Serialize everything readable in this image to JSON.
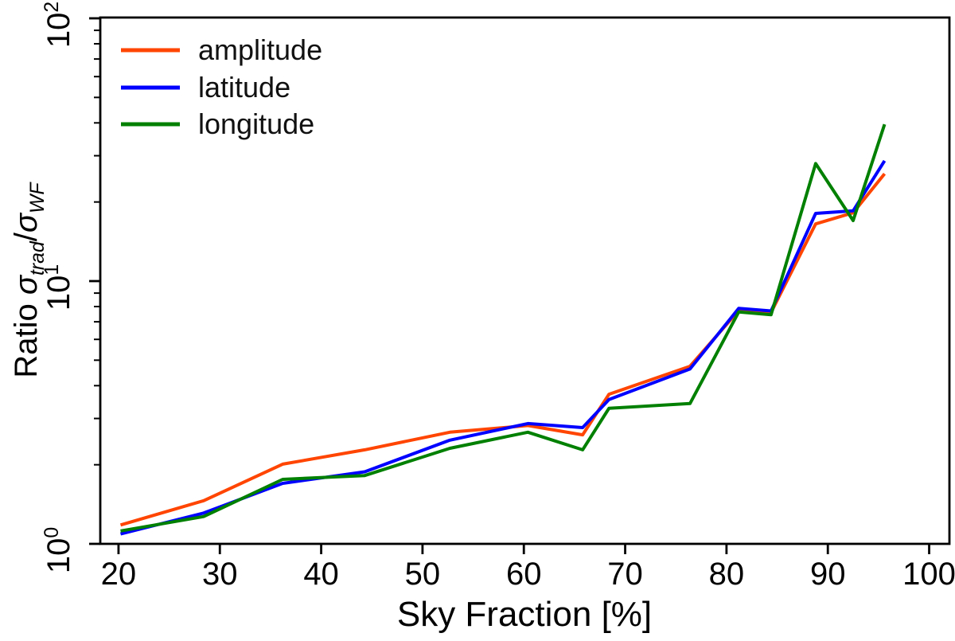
{
  "figure": {
    "background": "#ffffff",
    "axis_color": "#000000",
    "text_color": "#000000"
  },
  "chart_data": {
    "type": "line",
    "title": "",
    "xlabel": "Sky Fraction [%]",
    "ylabel": {
      "plain": "Ratio σtrad/σWF",
      "prefix": "Ratio ",
      "sigma": "σ",
      "sub_numerator": "trad",
      "divider": "/",
      "sub_denominator": "WF"
    },
    "x_axis": {
      "scale": "linear",
      "min": 18.2,
      "max": 102.0,
      "ticks": [
        20,
        30,
        40,
        50,
        60,
        70,
        80,
        90,
        100
      ]
    },
    "y_axis": {
      "scale": "log",
      "min": 1,
      "max": 100,
      "base_label": "10",
      "major_tick_exponents": [
        0,
        1,
        2
      ],
      "minor_tick_mantissas": [
        2,
        3,
        4,
        5,
        6,
        7,
        8,
        9
      ]
    },
    "grid": false,
    "x": [
      20.2,
      28.4,
      36.2,
      44.3,
      52.7,
      60.4,
      65.8,
      68.4,
      76.4,
      81.2,
      84.4,
      88.8,
      92.5,
      95.6
    ],
    "series": [
      {
        "name": "amplitude",
        "color": "#ff4500",
        "values": [
          1.18,
          1.46,
          2.01,
          2.28,
          2.66,
          2.82,
          2.6,
          3.71,
          4.74,
          7.72,
          7.6,
          16.5,
          18.2,
          25.6
        ]
      },
      {
        "name": "latitude",
        "color": "#0000ff",
        "values": [
          1.09,
          1.31,
          1.7,
          1.88,
          2.48,
          2.87,
          2.77,
          3.54,
          4.63,
          7.87,
          7.7,
          18.1,
          18.5,
          28.7
        ]
      },
      {
        "name": "longitude",
        "color": "#008000",
        "values": [
          1.12,
          1.27,
          1.76,
          1.82,
          2.31,
          2.66,
          2.28,
          3.28,
          3.42,
          7.63,
          7.45,
          28.0,
          17.0,
          39.5
        ]
      }
    ],
    "legend": {
      "position": "upper-left",
      "entries": [
        "amplitude",
        "latitude",
        "longitude"
      ]
    }
  }
}
